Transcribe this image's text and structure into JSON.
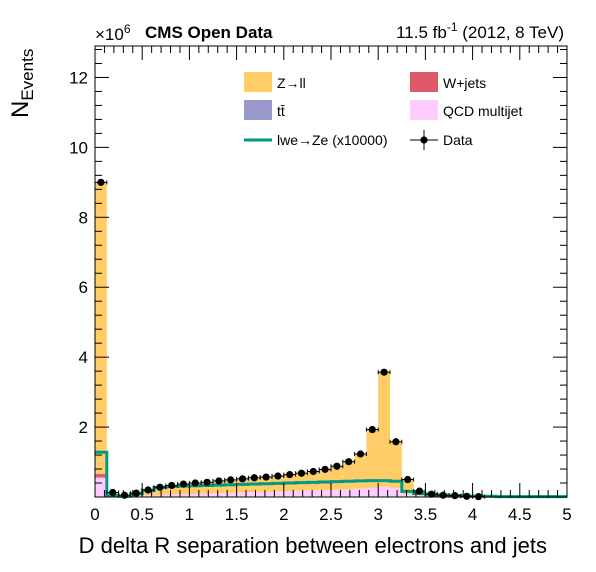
{
  "chart_data": {
    "type": "bar",
    "stacked": true,
    "header": {
      "experiment": "CMS Open Data",
      "lumi_prefix": "11.5 fb",
      "lumi_sup": "-1",
      "lumi_suffix": " (2012, 8 TeV)"
    },
    "ylabel_main": "N",
    "ylabel_sub": "Events",
    "y_multiplier": "×10",
    "y_multiplier_exp": "6",
    "xlabel": "D delta R separation between electrons and jets",
    "xlim": [
      0,
      5
    ],
    "ylim": [
      0,
      12.9
    ],
    "x_ticks": [
      "0",
      "0.5",
      "1",
      "1.5",
      "2",
      "2.5",
      "3",
      "3.5",
      "4",
      "4.5",
      "5"
    ],
    "y_ticks": [
      "2",
      "4",
      "6",
      "8",
      "10",
      "12"
    ],
    "bin_edges": [
      0,
      0.125,
      0.25,
      0.375,
      0.5,
      0.625,
      0.75,
      0.875,
      1.0,
      1.125,
      1.25,
      1.375,
      1.5,
      1.625,
      1.75,
      1.875,
      2.0,
      2.125,
      2.25,
      2.375,
      2.5,
      2.625,
      2.75,
      2.875,
      3.0,
      3.125,
      3.25,
      3.375,
      3.5,
      3.625,
      3.75,
      3.875,
      4.0,
      4.125,
      4.25,
      4.375,
      4.5,
      4.625,
      4.75,
      4.875,
      5.0
    ],
    "stack": [
      {
        "name": "QCD multijet",
        "color": "#ffccff",
        "values": [
          0.55,
          0.03,
          0.01,
          0.03,
          0.05,
          0.06,
          0.07,
          0.08,
          0.09,
          0.1,
          0.11,
          0.12,
          0.13,
          0.14,
          0.15,
          0.16,
          0.17,
          0.18,
          0.19,
          0.2,
          0.21,
          0.22,
          0.24,
          0.26,
          0.3,
          0.25,
          0.08,
          0.04,
          0.02,
          0.01,
          0.01,
          0.0,
          0.0,
          0.0,
          0.0,
          0.0,
          0.0,
          0.0,
          0.0,
          0.0
        ]
      },
      {
        "name": "tt̄",
        "color": "#9999cc",
        "values": [
          0.01,
          0.0,
          0.0,
          0.0,
          0.0,
          0.0,
          0.0,
          0.0,
          0.0,
          0.0,
          0.0,
          0.0,
          0.0,
          0.0,
          0.0,
          0.0,
          0.0,
          0.0,
          0.0,
          0.0,
          0.0,
          0.0,
          0.0,
          0.0,
          0.0,
          0.0,
          0.0,
          0.0,
          0.0,
          0.0,
          0.0,
          0.0,
          0.0,
          0.0,
          0.0,
          0.0,
          0.0,
          0.0,
          0.0,
          0.0
        ]
      },
      {
        "name": "W+jets",
        "color": "#de5a6a",
        "values": [
          0.1,
          0.0,
          0.0,
          0.0,
          0.0,
          0.0,
          0.0,
          0.0,
          0.0,
          0.0,
          0.0,
          0.0,
          0.0,
          0.0,
          0.0,
          0.0,
          0.0,
          0.0,
          0.0,
          0.0,
          0.0,
          0.0,
          0.0,
          0.0,
          0.0,
          0.0,
          0.0,
          0.0,
          0.0,
          0.0,
          0.0,
          0.0,
          0.0,
          0.0,
          0.0,
          0.0,
          0.0,
          0.0,
          0.0,
          0.0
        ]
      },
      {
        "name": "Z→ll",
        "color": "#ffcc66",
        "values": [
          8.34,
          0.1,
          0.04,
          0.08,
          0.15,
          0.22,
          0.26,
          0.29,
          0.31,
          0.32,
          0.35,
          0.37,
          0.39,
          0.41,
          0.42,
          0.44,
          0.47,
          0.5,
          0.54,
          0.59,
          0.67,
          0.79,
          0.99,
          1.67,
          3.27,
          1.33,
          0.42,
          0.13,
          0.06,
          0.04,
          0.03,
          0.02,
          0.01,
          0.0,
          0.0,
          0.0,
          0.0,
          0.0,
          0.0,
          0.0
        ]
      }
    ],
    "signal": {
      "name": "lwe→Ze (x10000)",
      "color": "#009988",
      "values": [
        1.28,
        0.05,
        0.02,
        0.09,
        0.19,
        0.27,
        0.3,
        0.31,
        0.32,
        0.33,
        0.34,
        0.35,
        0.36,
        0.37,
        0.38,
        0.39,
        0.4,
        0.41,
        0.42,
        0.43,
        0.44,
        0.45,
        0.46,
        0.47,
        0.47,
        0.45,
        0.16,
        0.1,
        0.08,
        0.06,
        0.04,
        0.03,
        0.02,
        0.02,
        0.01,
        0.01,
        0.01,
        0.01,
        0.01,
        0.01
      ]
    },
    "data_series": {
      "name": "Data",
      "values": [
        9.0,
        0.13,
        0.05,
        0.11,
        0.2,
        0.28,
        0.33,
        0.37,
        0.4,
        0.42,
        0.46,
        0.49,
        0.52,
        0.55,
        0.57,
        0.6,
        0.64,
        0.68,
        0.73,
        0.79,
        0.88,
        1.01,
        1.23,
        1.93,
        3.57,
        1.58,
        0.5,
        0.17,
        0.08,
        0.05,
        0.04,
        0.02,
        0.01,
        0.0,
        0.0,
        0.0,
        0.0,
        0.0,
        0.0,
        0.0
      ]
    },
    "legend": [
      {
        "label": "Z→ll",
        "kind": "box",
        "color": "#ffcc66"
      },
      {
        "label": "W+jets",
        "kind": "box",
        "color": "#de5a6a"
      },
      {
        "label": "tt̄",
        "kind": "box",
        "color": "#9999cc"
      },
      {
        "label": "QCD multijet",
        "kind": "box",
        "color": "#ffccff"
      },
      {
        "label": "lwe→Ze (x10000)",
        "kind": "line",
        "color": "#009988"
      },
      {
        "label": "Data",
        "kind": "marker",
        "color": "#000000"
      }
    ],
    "legend_position": "top-right"
  }
}
